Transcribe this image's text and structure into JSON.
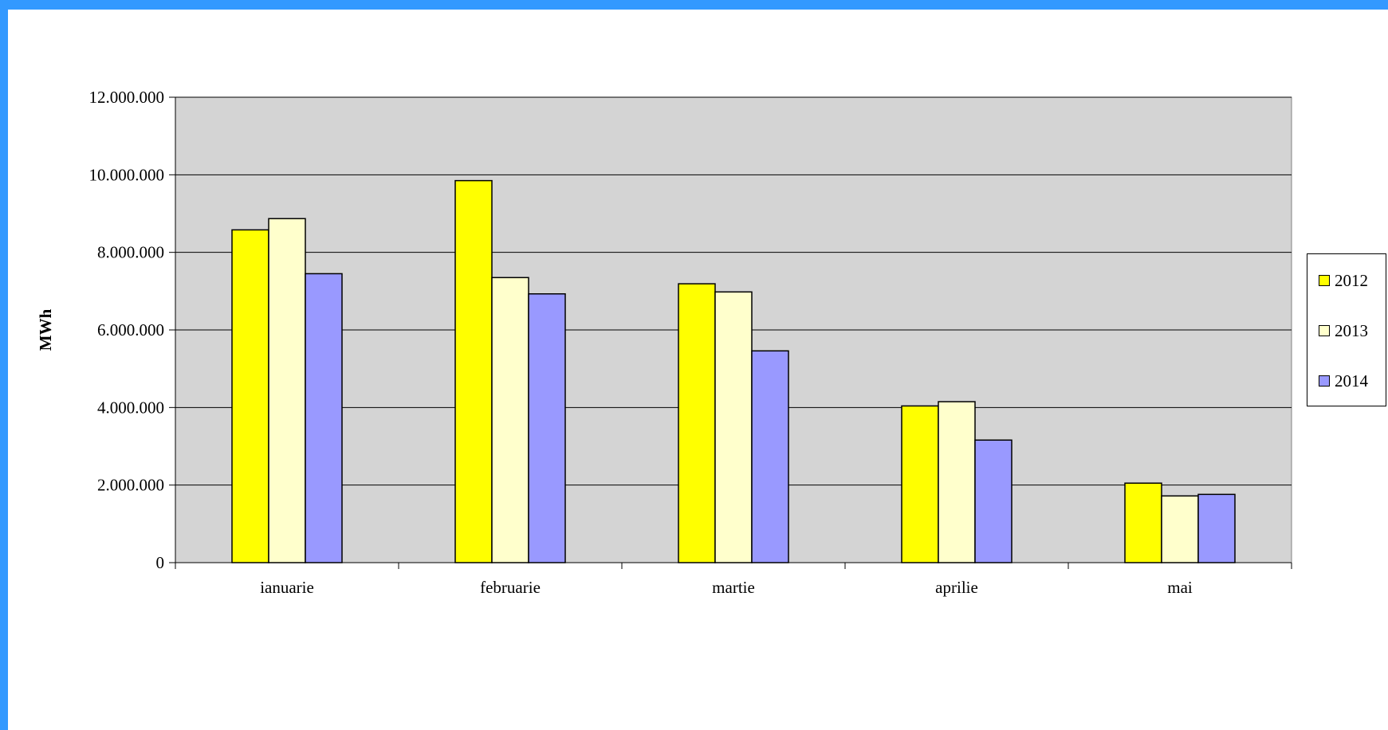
{
  "chart_data": {
    "type": "bar",
    "categories": [
      "ianuarie",
      "februarie",
      "martie",
      "aprilie",
      "mai"
    ],
    "series": [
      {
        "name": "2012",
        "color": "#ffff00",
        "values": [
          8580000,
          9850000,
          7190000,
          4040000,
          2050000
        ]
      },
      {
        "name": "2013",
        "color": "#ffffcc",
        "values": [
          8870000,
          7350000,
          6980000,
          4150000,
          1720000
        ]
      },
      {
        "name": "2014",
        "color": "#9999ff",
        "values": [
          7450000,
          6930000,
          5460000,
          3160000,
          1760000
        ]
      }
    ],
    "ylabel": "MWh",
    "xlabel": "",
    "title": "",
    "ylim": [
      0,
      12000000
    ],
    "yticks": [
      0,
      2000000,
      4000000,
      6000000,
      8000000,
      10000000,
      12000000
    ],
    "ytick_labels": [
      "0",
      "2.000.000",
      "4.000.000",
      "6.000.000",
      "8.000.000",
      "10.000.000",
      "12.000.000"
    ],
    "grid": true,
    "legend_position": "right",
    "plot_background": "#d4d4d4"
  }
}
